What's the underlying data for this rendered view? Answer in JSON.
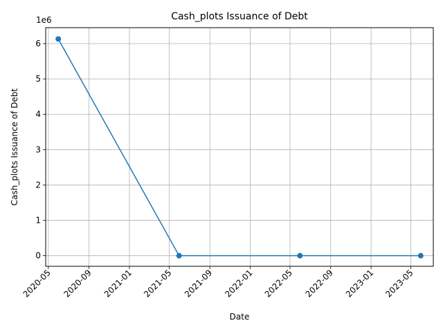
{
  "chart_data": {
    "type": "line",
    "title": "Cash_plots Issuance of Debt",
    "xlabel": "Date",
    "ylabel": "Cash_plots Issuance of Debt",
    "y_offset_label": "1e6",
    "x": [
      "2020-05-31",
      "2021-05-31",
      "2022-05-31",
      "2023-05-31"
    ],
    "series": [
      {
        "values": [
          6130000,
          0,
          0,
          0
        ]
      }
    ],
    "ylim": [
      -300000,
      6450000
    ],
    "xlim": [
      "2020-04-23",
      "2023-07-08"
    ],
    "x_ticks": [
      "2020-05",
      "2020-09",
      "2021-01",
      "2021-05",
      "2021-09",
      "2022-01",
      "2022-05",
      "2022-09",
      "2023-01",
      "2023-05"
    ],
    "y_ticks": [
      0,
      1000000,
      2000000,
      3000000,
      4000000,
      5000000,
      6000000
    ],
    "y_tick_labels": [
      "0",
      "1",
      "2",
      "3",
      "4",
      "5",
      "6"
    ],
    "grid": true,
    "colors": {
      "line": "#1f77b4",
      "grid": "#b0b0b0",
      "axes": "#000000"
    }
  }
}
